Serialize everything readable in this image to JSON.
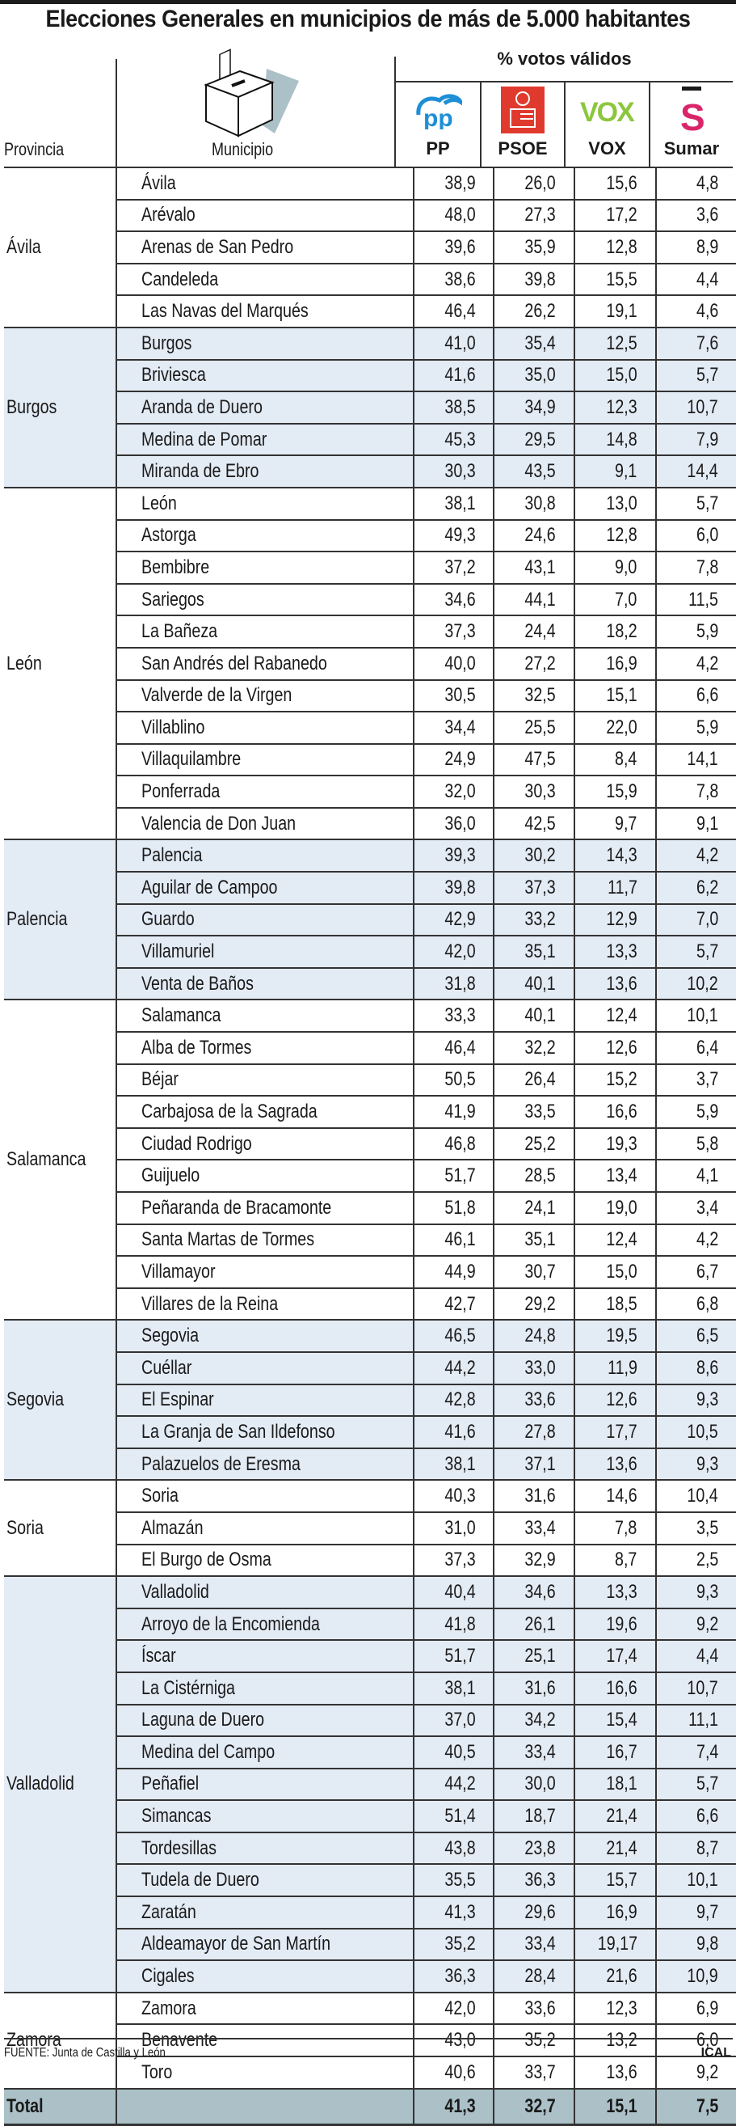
{
  "title": "Elecciones Generales en municipios de más de 5.000 habitantes",
  "header": {
    "provincia_label": "Provincia",
    "municipio_label": "Municipio",
    "votos_label": "% votos válidos",
    "parties": [
      {
        "label": "PP",
        "icon": "pp-logo-icon",
        "color": "#1e8fd6"
      },
      {
        "label": "PSOE",
        "icon": "psoe-logo-icon",
        "color": "#e03a2e"
      },
      {
        "label": "VOX",
        "icon": "vox-logo-icon",
        "color": "#8cc63e"
      },
      {
        "label": "Sumar",
        "icon": "sumar-logo-icon",
        "color": "#d9266a"
      }
    ]
  },
  "provinces": [
    {
      "name": "Ávila",
      "shaded": false,
      "rows": [
        {
          "municipio": "Ávila",
          "pp": "38,9",
          "psoe": "26,0",
          "vox": "15,6",
          "sumar": "4,8"
        },
        {
          "municipio": "Arévalo",
          "pp": "48,0",
          "psoe": "27,3",
          "vox": "17,2",
          "sumar": "3,6"
        },
        {
          "municipio": "Arenas de San Pedro",
          "pp": "39,6",
          "psoe": "35,9",
          "vox": "12,8",
          "sumar": "8,9"
        },
        {
          "municipio": "Candeleda",
          "pp": "38,6",
          "psoe": "39,8",
          "vox": "15,5",
          "sumar": "4,4"
        },
        {
          "municipio": "Las Navas del Marqués",
          "pp": "46,4",
          "psoe": "26,2",
          "vox": "19,1",
          "sumar": "4,6"
        }
      ]
    },
    {
      "name": "Burgos",
      "shaded": true,
      "rows": [
        {
          "municipio": "Burgos",
          "pp": "41,0",
          "psoe": "35,4",
          "vox": "12,5",
          "sumar": "7,6"
        },
        {
          "municipio": "Briviesca",
          "pp": "41,6",
          "psoe": "35,0",
          "vox": "15,0",
          "sumar": "5,7"
        },
        {
          "municipio": "Aranda de Duero",
          "pp": "38,5",
          "psoe": "34,9",
          "vox": "12,3",
          "sumar": "10,7"
        },
        {
          "municipio": "Medina de Pomar",
          "pp": "45,3",
          "psoe": "29,5",
          "vox": "14,8",
          "sumar": "7,9"
        },
        {
          "municipio": "Miranda de Ebro",
          "pp": "30,3",
          "psoe": "43,5",
          "vox": "9,1",
          "sumar": "14,4"
        }
      ]
    },
    {
      "name": "León",
      "shaded": false,
      "rows": [
        {
          "municipio": "León",
          "pp": "38,1",
          "psoe": "30,8",
          "vox": "13,0",
          "sumar": "5,7"
        },
        {
          "municipio": "Astorga",
          "pp": "49,3",
          "psoe": "24,6",
          "vox": "12,8",
          "sumar": "6,0"
        },
        {
          "municipio": "Bembibre",
          "pp": "37,2",
          "psoe": "43,1",
          "vox": "9,0",
          "sumar": "7,8"
        },
        {
          "municipio": "Sariegos",
          "pp": "34,6",
          "psoe": "44,1",
          "vox": "7,0",
          "sumar": "11,5"
        },
        {
          "municipio": "La Bañeza",
          "pp": "37,3",
          "psoe": "24,4",
          "vox": "18,2",
          "sumar": "5,9"
        },
        {
          "municipio": "San Andrés del Rabanedo",
          "pp": "40,0",
          "psoe": "27,2",
          "vox": "16,9",
          "sumar": "4,2"
        },
        {
          "municipio": "Valverde de la Virgen",
          "pp": "30,5",
          "psoe": "32,5",
          "vox": "15,1",
          "sumar": "6,6"
        },
        {
          "municipio": "Villablino",
          "pp": "34,4",
          "psoe": "25,5",
          "vox": "22,0",
          "sumar": "5,9"
        },
        {
          "municipio": "Villaquilambre",
          "pp": "24,9",
          "psoe": "47,5",
          "vox": "8,4",
          "sumar": "14,1"
        },
        {
          "municipio": "Ponferrada",
          "pp": "32,0",
          "psoe": "30,3",
          "vox": "15,9",
          "sumar": "7,8"
        },
        {
          "municipio": "Valencia de Don Juan",
          "pp": "36,0",
          "psoe": "42,5",
          "vox": "9,7",
          "sumar": "9,1"
        }
      ]
    },
    {
      "name": "Palencia",
      "shaded": true,
      "rows": [
        {
          "municipio": "Palencia",
          "pp": "39,3",
          "psoe": "30,2",
          "vox": "14,3",
          "sumar": "4,2"
        },
        {
          "municipio": "Aguilar de Campoo",
          "pp": "39,8",
          "psoe": "37,3",
          "vox": "11,7",
          "sumar": "6,2"
        },
        {
          "municipio": "Guardo",
          "pp": "42,9",
          "psoe": "33,2",
          "vox": "12,9",
          "sumar": "7,0"
        },
        {
          "municipio": "Villamuriel",
          "pp": "42,0",
          "psoe": "35,1",
          "vox": "13,3",
          "sumar": "5,7"
        },
        {
          "municipio": "Venta de Baños",
          "pp": "31,8",
          "psoe": "40,1",
          "vox": "13,6",
          "sumar": "10,2"
        }
      ]
    },
    {
      "name": "Salamanca",
      "shaded": false,
      "rows": [
        {
          "municipio": "Salamanca",
          "pp": "33,3",
          "psoe": "40,1",
          "vox": "12,4",
          "sumar": "10,1"
        },
        {
          "municipio": "Alba de Tormes",
          "pp": "46,4",
          "psoe": "32,2",
          "vox": "12,6",
          "sumar": "6,4"
        },
        {
          "municipio": "Béjar",
          "pp": "50,5",
          "psoe": "26,4",
          "vox": "15,2",
          "sumar": "3,7"
        },
        {
          "municipio": "Carbajosa de la Sagrada",
          "pp": "41,9",
          "psoe": "33,5",
          "vox": "16,6",
          "sumar": "5,9"
        },
        {
          "municipio": "Ciudad Rodrigo",
          "pp": "46,8",
          "psoe": "25,2",
          "vox": "19,3",
          "sumar": "5,8"
        },
        {
          "municipio": "Guijuelo",
          "pp": "51,7",
          "psoe": "28,5",
          "vox": "13,4",
          "sumar": "4,1"
        },
        {
          "municipio": "Peñaranda de Bracamonte",
          "pp": "51,8",
          "psoe": "24,1",
          "vox": "19,0",
          "sumar": "3,4"
        },
        {
          "municipio": "Santa Martas de Tormes",
          "pp": "46,1",
          "psoe": "35,1",
          "vox": "12,4",
          "sumar": "4,2"
        },
        {
          "municipio": "Villamayor",
          "pp": "44,9",
          "psoe": "30,7",
          "vox": "15,0",
          "sumar": "6,7"
        },
        {
          "municipio": "Villares de la Reina",
          "pp": "42,7",
          "psoe": "29,2",
          "vox": "18,5",
          "sumar": "6,8"
        }
      ]
    },
    {
      "name": "Segovia",
      "shaded": true,
      "rows": [
        {
          "municipio": "Segovia",
          "pp": "46,5",
          "psoe": "24,8",
          "vox": "19,5",
          "sumar": "6,5"
        },
        {
          "municipio": "Cuéllar",
          "pp": "44,2",
          "psoe": "33,0",
          "vox": "11,9",
          "sumar": "8,6"
        },
        {
          "municipio": "El Espinar",
          "pp": "42,8",
          "psoe": "33,6",
          "vox": "12,6",
          "sumar": "9,3"
        },
        {
          "municipio": "La Granja de San Ildefonso",
          "pp": "41,6",
          "psoe": "27,8",
          "vox": "17,7",
          "sumar": "10,5"
        },
        {
          "municipio": "Palazuelos de Eresma",
          "pp": "38,1",
          "psoe": "37,1",
          "vox": "13,6",
          "sumar": "9,3"
        }
      ]
    },
    {
      "name": "Soria",
      "shaded": false,
      "rows": [
        {
          "municipio": "Soria",
          "pp": "40,3",
          "psoe": "31,6",
          "vox": "14,6",
          "sumar": "10,4"
        },
        {
          "municipio": "Almazán",
          "pp": "31,0",
          "psoe": "33,4",
          "vox": "7,8",
          "sumar": "3,5"
        },
        {
          "municipio": "El Burgo de Osma",
          "pp": "37,3",
          "psoe": "32,9",
          "vox": "8,7",
          "sumar": "2,5"
        }
      ]
    },
    {
      "name": "Valladolid",
      "shaded": true,
      "rows": [
        {
          "municipio": "Valladolid",
          "pp": "40,4",
          "psoe": "34,6",
          "vox": "13,3",
          "sumar": "9,3"
        },
        {
          "municipio": "Arroyo de la Encomienda",
          "pp": "41,8",
          "psoe": "26,1",
          "vox": "19,6",
          "sumar": "9,2"
        },
        {
          "municipio": "Íscar",
          "pp": "51,7",
          "psoe": "25,1",
          "vox": "17,4",
          "sumar": "4,4"
        },
        {
          "municipio": "La Cistérniga",
          "pp": "38,1",
          "psoe": "31,6",
          "vox": "16,6",
          "sumar": "10,7"
        },
        {
          "municipio": "Laguna de Duero",
          "pp": "37,0",
          "psoe": "34,2",
          "vox": "15,4",
          "sumar": "11,1"
        },
        {
          "municipio": "Medina del Campo",
          "pp": "40,5",
          "psoe": "33,4",
          "vox": "16,7",
          "sumar": "7,4"
        },
        {
          "municipio": "Peñafiel",
          "pp": "44,2",
          "psoe": "30,0",
          "vox": "18,1",
          "sumar": "5,7"
        },
        {
          "municipio": "Simancas",
          "pp": "51,4",
          "psoe": "18,7",
          "vox": "21,4",
          "sumar": "6,6"
        },
        {
          "municipio": "Tordesillas",
          "pp": "43,8",
          "psoe": "23,8",
          "vox": "21,4",
          "sumar": "8,7"
        },
        {
          "municipio": "Tudela de Duero",
          "pp": "35,5",
          "psoe": "36,3",
          "vox": "15,7",
          "sumar": "10,1"
        },
        {
          "municipio": "Zaratán",
          "pp": "41,3",
          "psoe": "29,6",
          "vox": "16,9",
          "sumar": "9,7"
        },
        {
          "municipio": "Aldeamayor de San Martín",
          "pp": "35,2",
          "psoe": "33,4",
          "vox": "19,17",
          "sumar": "9,8"
        },
        {
          "municipio": "Cigales",
          "pp": "36,3",
          "psoe": "28,4",
          "vox": "21,6",
          "sumar": "10,9"
        }
      ]
    },
    {
      "name": "Zamora",
      "shaded": false,
      "rows": [
        {
          "municipio": "Zamora",
          "pp": "42,0",
          "psoe": "33,6",
          "vox": "12,3",
          "sumar": "6,9"
        },
        {
          "municipio": "Benavente",
          "pp": "43,0",
          "psoe": "35,2",
          "vox": "13,2",
          "sumar": "6,0"
        },
        {
          "municipio": "Toro",
          "pp": "40,6",
          "psoe": "33,7",
          "vox": "13,6",
          "sumar": "9,2"
        }
      ]
    }
  ],
  "total": {
    "label": "Total",
    "pp": "41,3",
    "psoe": "32,7",
    "vox": "15,1",
    "sumar": "7,5"
  },
  "footer": {
    "source": "FUENTE: Junta de Castilla y León",
    "agency": "ICAL"
  },
  "chart_data": {
    "type": "table",
    "title": "Elecciones Generales en municipios de más de 5.000 habitantes",
    "columns": [
      "Provincia",
      "Municipio",
      "PP",
      "PSOE",
      "VOX",
      "Sumar"
    ],
    "unit": "% votos válidos",
    "total": {
      "PP": 41.3,
      "PSOE": 32.7,
      "VOX": 15.1,
      "Sumar": 7.5
    }
  }
}
